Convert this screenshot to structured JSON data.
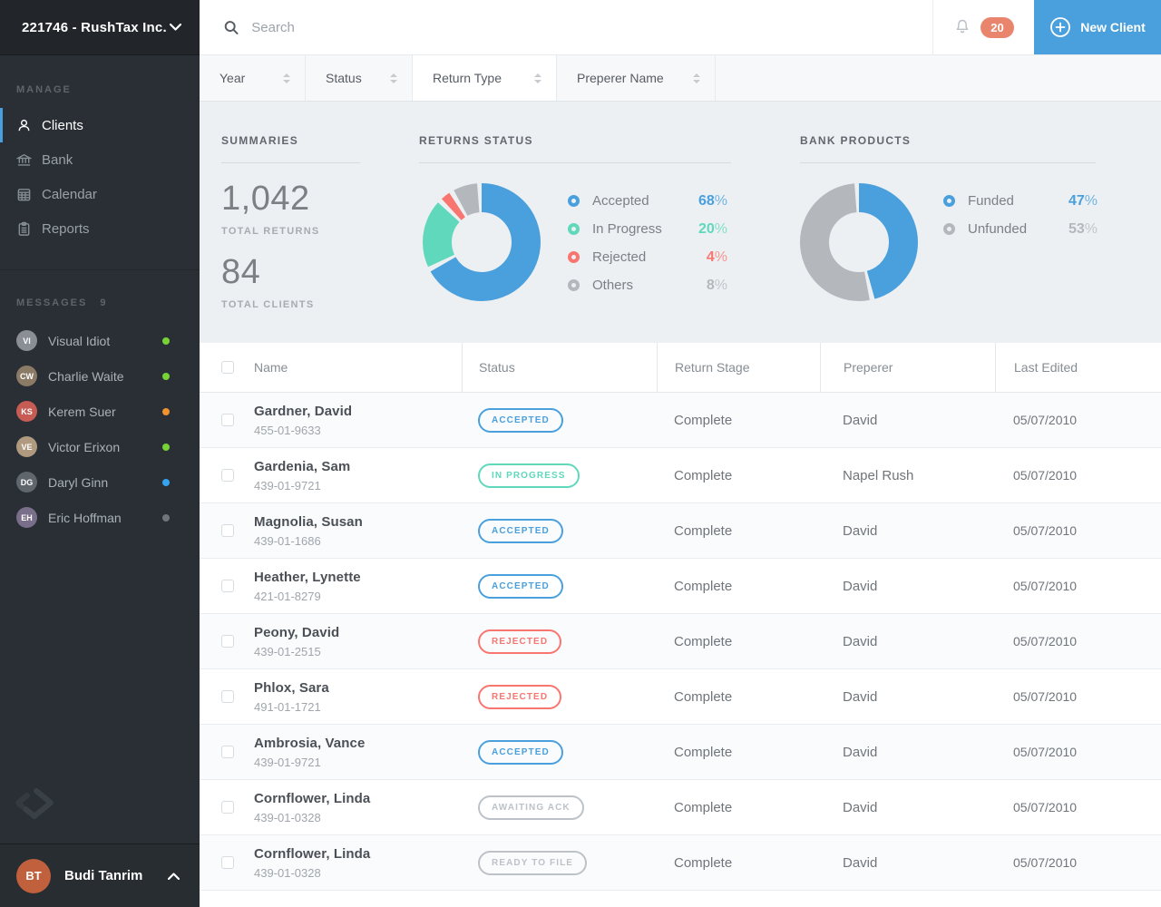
{
  "sidebar": {
    "account": {
      "label": "221746 - RushTax Inc."
    },
    "manage": {
      "heading": "MANAGE",
      "items": [
        {
          "label": "Clients",
          "icon": "user-icon",
          "active": true
        },
        {
          "label": "Bank",
          "icon": "bank-icon",
          "active": false
        },
        {
          "label": "Calendar",
          "icon": "calendar-icon",
          "active": false
        },
        {
          "label": "Reports",
          "icon": "clipboard-icon",
          "active": false
        }
      ]
    },
    "messages": {
      "heading": "MESSAGES",
      "count": "9",
      "items": [
        {
          "name": "Visual Idiot",
          "initials": "VI",
          "dot_color": "#77d235",
          "avatar_color": "#8a8f95"
        },
        {
          "name": "Charlie Waite",
          "initials": "CW",
          "dot_color": "#77d235",
          "avatar_color": "#8a7a66"
        },
        {
          "name": "Kerem Suer",
          "initials": "KS",
          "dot_color": "#f0922e",
          "avatar_color": "#c75c54"
        },
        {
          "name": "Victor Erixon",
          "initials": "VE",
          "dot_color": "#77d235",
          "avatar_color": "#b09a7f"
        },
        {
          "name": "Daryl Ginn",
          "initials": "DG",
          "dot_color": "#35a3ef",
          "avatar_color": "#5f666d"
        },
        {
          "name": "Eric Hoffman",
          "initials": "EH",
          "dot_color": "#70757b",
          "avatar_color": "#7a6f8a"
        }
      ]
    },
    "user": {
      "name": "Budi Tanrim",
      "initials": "BT",
      "avatar_color": "#c0603c"
    }
  },
  "topbar": {
    "search_placeholder": "Search",
    "notifications_count": "20",
    "new_client_label": "New Client"
  },
  "filters": [
    {
      "label": "Year",
      "active": false
    },
    {
      "label": "Status",
      "active": false
    },
    {
      "label": "Return Type",
      "active": true
    },
    {
      "label": "Preperer Name",
      "active": false
    }
  ],
  "summaries": {
    "heading": "SUMMARIES",
    "stats": [
      {
        "value": "1,042",
        "label": "TOTAL RETURNS"
      },
      {
        "value": "84",
        "label": "TOTAL CLIENTS"
      }
    ]
  },
  "chart_data": [
    {
      "type": "pie",
      "variant": "donut",
      "title": "RETURNS STATUS",
      "unit": "%",
      "legend_position": "right",
      "series": [
        {
          "name": "Accepted",
          "value": 68,
          "color": "#4aa0dc"
        },
        {
          "name": "In Progress",
          "value": 20,
          "color": "#5fd8bc"
        },
        {
          "name": "Rejected",
          "value": 4,
          "color": "#f8766f"
        },
        {
          "name": "Others",
          "value": 8,
          "color": "#b4b8bc"
        }
      ]
    },
    {
      "type": "pie",
      "variant": "donut",
      "title": "BANK PRODUCTS",
      "unit": "%",
      "legend_position": "right",
      "series": [
        {
          "name": "Funded",
          "value": 47,
          "color": "#4aa0dc"
        },
        {
          "name": "Unfunded",
          "value": 53,
          "color": "#b4b8bc"
        }
      ]
    }
  ],
  "table": {
    "headers": [
      "Name",
      "Status",
      "Return Stage",
      "Preperer",
      "Last Edited"
    ],
    "rows": [
      {
        "name": "Gardner, David",
        "ssn": "455-01-9633",
        "status": {
          "label": "ACCEPTED",
          "color": "#4aa0dc"
        },
        "stage": "Complete",
        "preperer": "David",
        "last_edited": "05/07/2010"
      },
      {
        "name": "Gardenia, Sam",
        "ssn": "439-01-9721",
        "status": {
          "label": "IN PROGRESS",
          "color": "#5fd8bc"
        },
        "stage": "Complete",
        "preperer": "Napel Rush",
        "last_edited": "05/07/2010"
      },
      {
        "name": "Magnolia, Susan",
        "ssn": "439-01-1686",
        "status": {
          "label": "ACCEPTED",
          "color": "#4aa0dc"
        },
        "stage": "Complete",
        "preperer": "David",
        "last_edited": "05/07/2010"
      },
      {
        "name": "Heather, Lynette",
        "ssn": "421-01-8279",
        "status": {
          "label": "ACCEPTED",
          "color": "#4aa0dc"
        },
        "stage": "Complete",
        "preperer": "David",
        "last_edited": "05/07/2010"
      },
      {
        "name": "Peony, David",
        "ssn": "439-01-2515",
        "status": {
          "label": "REJECTED",
          "color": "#f8766f"
        },
        "stage": "Complete",
        "preperer": "David",
        "last_edited": "05/07/2010"
      },
      {
        "name": "Phlox, Sara",
        "ssn": "491-01-1721",
        "status": {
          "label": "REJECTED",
          "color": "#f8766f"
        },
        "stage": "Complete",
        "preperer": "David",
        "last_edited": "05/07/2010"
      },
      {
        "name": "Ambrosia, Vance",
        "ssn": "439-01-9721",
        "status": {
          "label": "ACCEPTED",
          "color": "#4aa0dc"
        },
        "stage": "Complete",
        "preperer": "David",
        "last_edited": "05/07/2010"
      },
      {
        "name": "Cornflower, Linda",
        "ssn": "439-01-0328",
        "status": {
          "label": "AWAITING ACK",
          "color": "#bcc2c8"
        },
        "stage": "Complete",
        "preperer": "David",
        "last_edited": "05/07/2010"
      },
      {
        "name": "Cornflower, Linda",
        "ssn": "439-01-0328",
        "status": {
          "label": "READY TO FILE",
          "color": "#bcc2c8"
        },
        "stage": "Complete",
        "preperer": "David",
        "last_edited": "05/07/2010"
      }
    ]
  }
}
